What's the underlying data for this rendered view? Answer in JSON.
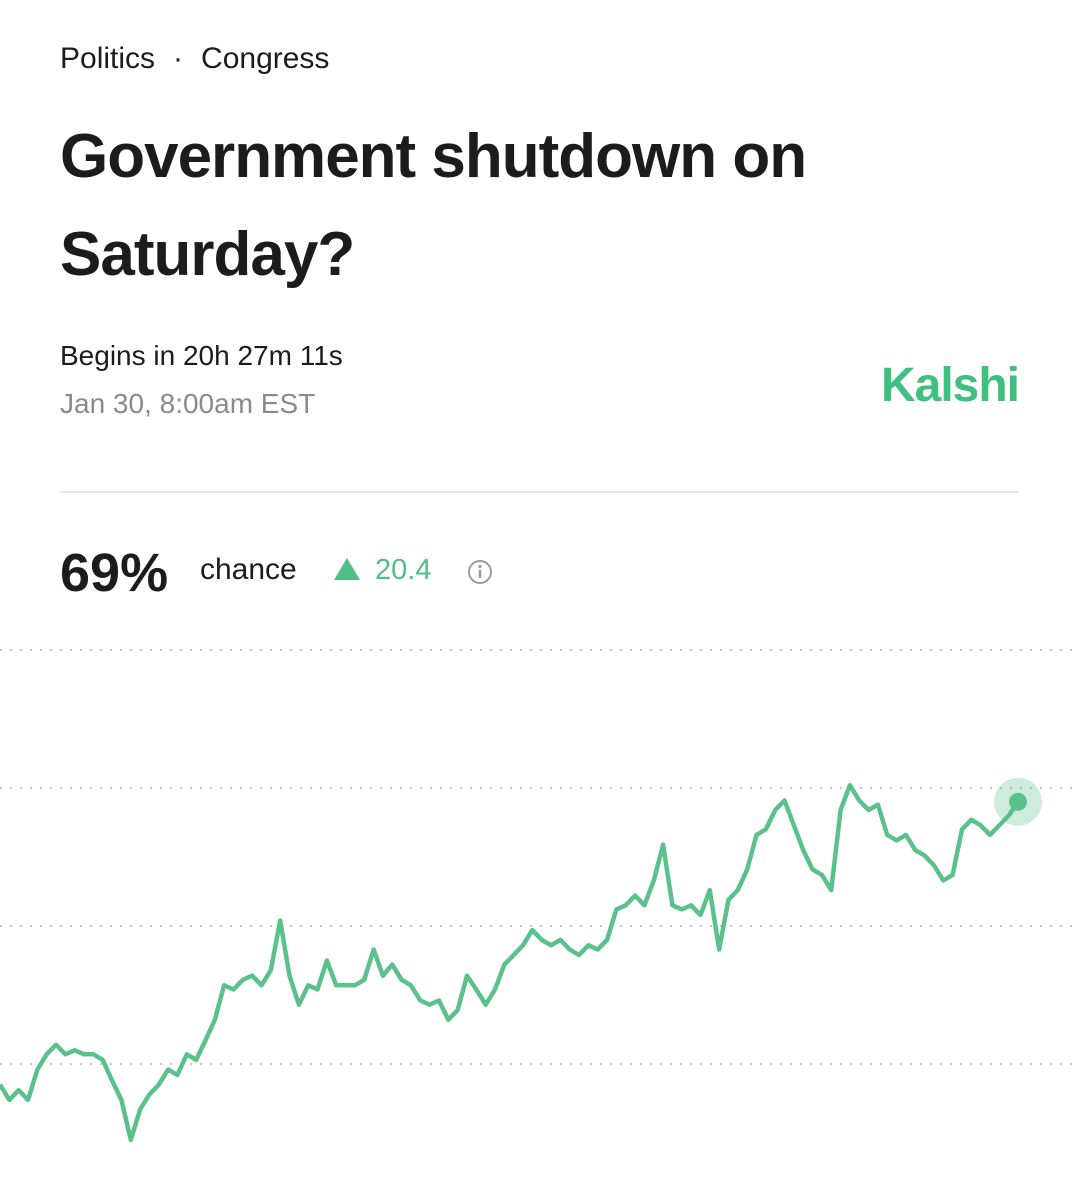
{
  "header": {
    "category": "Politics",
    "separator": "·",
    "subcategory": "Congress",
    "title": "Government shutdown on Saturday?",
    "countdown": "Begins in 20h 27m 11s",
    "date": "Jan 30, 8:00am EST",
    "brand": "Kalshi"
  },
  "summary": {
    "probability": "69%",
    "probability_label": "chance",
    "change": "20.4"
  },
  "chart_data": {
    "type": "line",
    "color": "#5bc18b",
    "ylim": [
      40,
      80
    ],
    "yticks": [
      50,
      60,
      70,
      80
    ],
    "grid": true,
    "values": [
      48.5,
      47.4,
      48.1,
      47.4,
      49.6,
      50.7,
      51.4,
      50.7,
      51.0,
      50.7,
      50.7,
      50.3,
      48.8,
      47.4,
      44.5,
      46.7,
      47.8,
      48.5,
      49.6,
      49.2,
      50.7,
      50.3,
      51.7,
      53.2,
      55.7,
      55.4,
      56.1,
      56.4,
      55.7,
      56.8,
      60.4,
      56.4,
      54.3,
      55.7,
      55.4,
      57.5,
      55.7,
      55.7,
      55.7,
      56.1,
      58.3,
      56.4,
      57.2,
      56.1,
      55.7,
      54.6,
      54.3,
      54.6,
      53.2,
      53.9,
      56.4,
      55.4,
      54.3,
      55.4,
      57.2,
      57.9,
      58.6,
      59.7,
      59.0,
      58.6,
      59.0,
      58.3,
      57.9,
      58.6,
      58.3,
      59.0,
      61.2,
      61.5,
      62.2,
      61.5,
      63.3,
      65.9,
      61.5,
      61.2,
      61.5,
      60.8,
      62.6,
      58.3,
      61.9,
      62.6,
      64.1,
      66.6,
      67.0,
      68.4,
      69.1,
      67.3,
      65.5,
      64.1,
      63.7,
      62.6,
      68.4,
      70.2,
      69.1,
      68.4,
      68.8,
      66.6,
      66.2,
      66.6,
      65.5,
      65.1,
      64.4,
      63.3,
      63.7,
      67.0,
      67.7,
      67.3,
      66.6,
      67.3,
      68.0,
      69.0
    ]
  }
}
